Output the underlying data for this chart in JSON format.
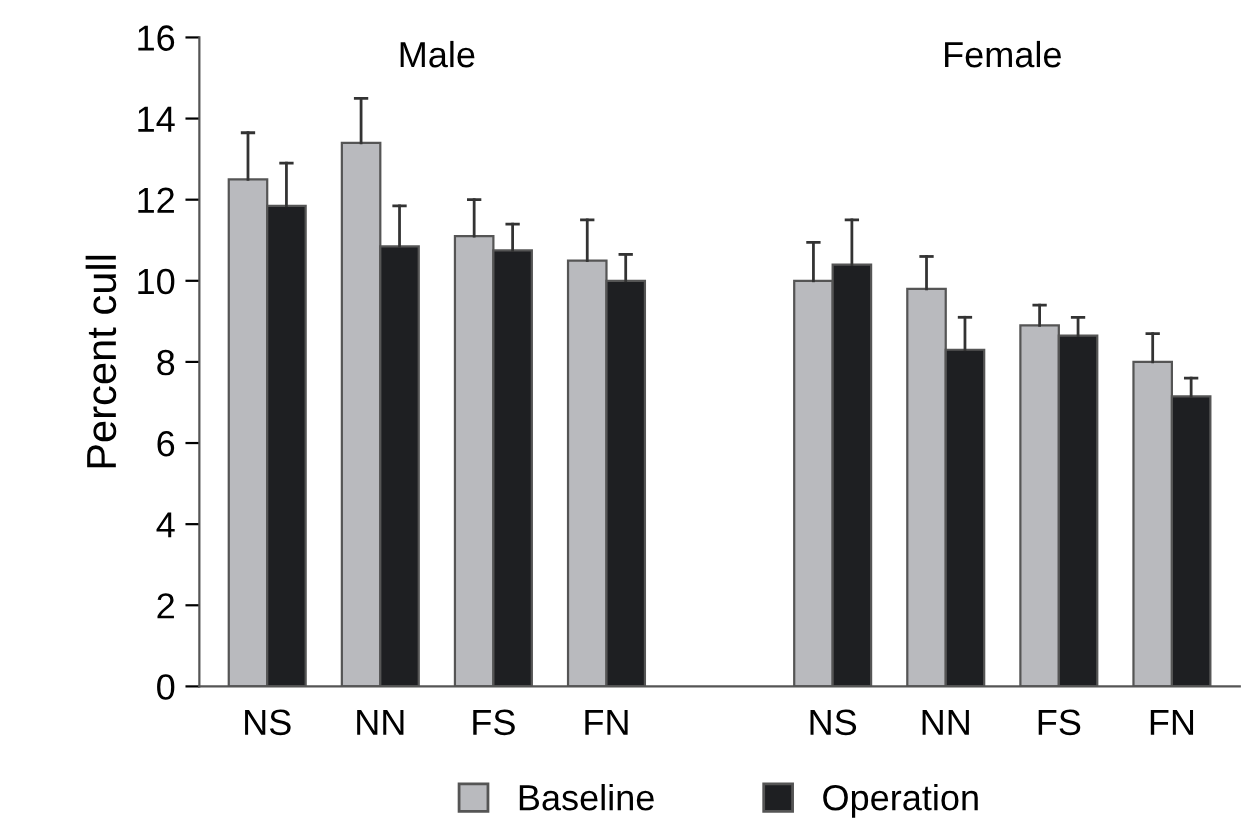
{
  "chart_data": {
    "type": "bar",
    "categories": [
      "NS",
      "NN",
      "FS",
      "FN",
      null,
      "NS",
      "NN",
      "FS",
      "FN"
    ],
    "series": [
      {
        "name": "Baseline",
        "color": "#b9babe",
        "values": [
          12.5,
          13.4,
          11.1,
          10.5,
          null,
          10.0,
          9.8,
          8.9,
          8.0
        ],
        "errors": [
          [
            12.5,
            13.65
          ],
          [
            13.4,
            14.5
          ],
          [
            11.1,
            12.0
          ],
          [
            10.5,
            11.5
          ],
          null,
          [
            10.0,
            10.95
          ],
          [
            9.8,
            10.6
          ],
          [
            8.9,
            9.4
          ],
          [
            8.0,
            8.7
          ]
        ]
      },
      {
        "name": "Operation",
        "color": "#1e1f22",
        "values": [
          11.85,
          10.85,
          10.75,
          10.0,
          null,
          10.4,
          8.3,
          8.65,
          7.15
        ],
        "errors": [
          [
            11.85,
            12.9
          ],
          [
            10.85,
            11.85
          ],
          [
            10.75,
            11.4
          ],
          [
            10.0,
            10.65
          ],
          null,
          [
            10.4,
            11.5
          ],
          [
            8.3,
            9.1
          ],
          [
            8.65,
            9.1
          ],
          [
            7.15,
            7.6
          ]
        ]
      }
    ],
    "ylabel": "Percent cull",
    "ylim": [
      0,
      16
    ],
    "yticks": [
      0,
      2,
      4,
      6,
      8,
      10,
      12,
      14,
      16
    ],
    "annotations": [
      "Male",
      "Female"
    ],
    "legend": "bottom",
    "grid": false
  }
}
